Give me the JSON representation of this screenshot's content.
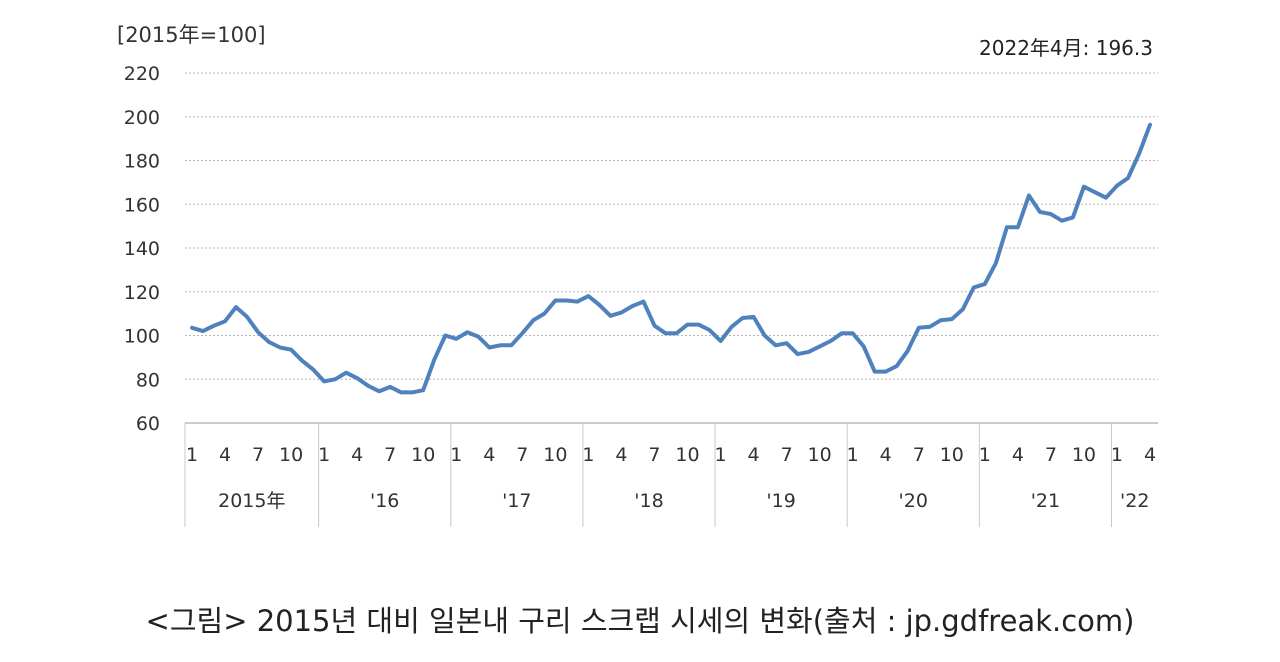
{
  "chart_data": {
    "type": "line",
    "ylabel": "[2015年=100]",
    "annotation": "2022年4月: 196.3",
    "ylim": [
      60,
      220
    ],
    "yticks": [
      60,
      80,
      100,
      120,
      140,
      160,
      180,
      200,
      220
    ],
    "grid": true,
    "line_color": "#4f81bd",
    "month_ticks": [
      "1",
      "4",
      "7",
      "10"
    ],
    "years": [
      {
        "label": "2015年",
        "months": 12
      },
      {
        "label": "'16",
        "months": 12
      },
      {
        "label": "'17",
        "months": 12
      },
      {
        "label": "'18",
        "months": 12
      },
      {
        "label": "'19",
        "months": 12
      },
      {
        "label": "'20",
        "months": 12
      },
      {
        "label": "'21",
        "months": 12
      },
      {
        "label": "'22",
        "months": 4
      }
    ],
    "series": [
      {
        "values": [
          103.5,
          102,
          104.5,
          106.5,
          113,
          108.5,
          101.5,
          97,
          94.5,
          93.5,
          88.5,
          84.5,
          79,
          80,
          83,
          80.5,
          77,
          74.5,
          76.5,
          74,
          74,
          75,
          89,
          100,
          98.5,
          101.5,
          99.5,
          94.5,
          95.5,
          95.5,
          101,
          107,
          110,
          116,
          116,
          115.5,
          118,
          114,
          109,
          110.5,
          113.5,
          115.5,
          104.5,
          101,
          101,
          105,
          105,
          102.5,
          97.5,
          104,
          108,
          108.5,
          100,
          95.5,
          96.5,
          91.5,
          92.5,
          95,
          97.5,
          101,
          101,
          95,
          83.5,
          83.5,
          86,
          93,
          103.5,
          104,
          107,
          107.5,
          112,
          122,
          123.5,
          133,
          149.5,
          149.5,
          164,
          156.5,
          155.5,
          152.5,
          154,
          168,
          165.5,
          163,
          168.5,
          172,
          183,
          196.3
        ]
      }
    ]
  },
  "caption": "<그림> 2015년 대비 일본내 구리 스크랩 시세의 변화(출처 : jp.gdfreak.com)"
}
